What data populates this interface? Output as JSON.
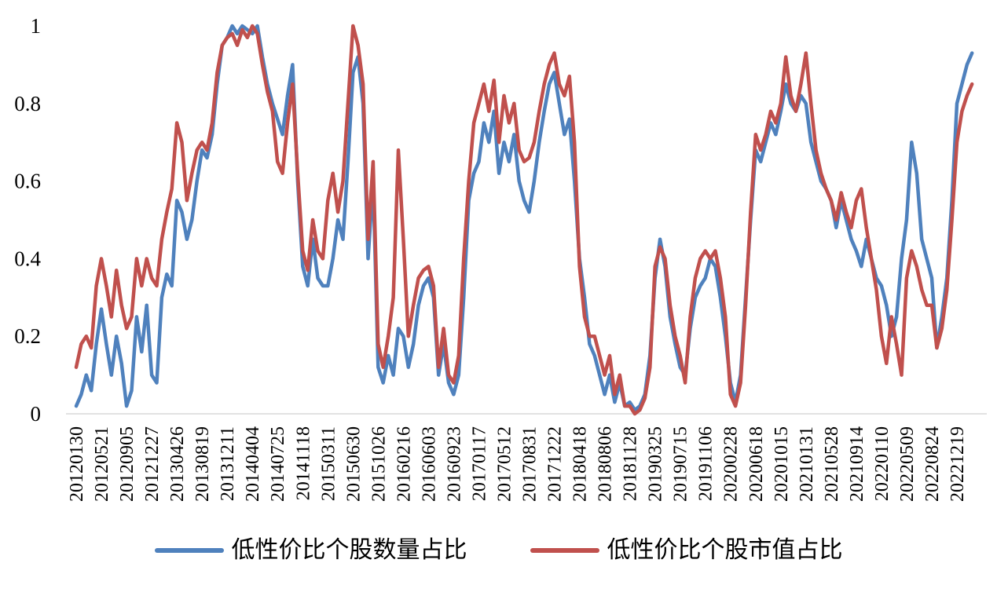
{
  "chart_data": {
    "type": "line",
    "title": "",
    "xlabel": "",
    "ylabel": "",
    "ylim": [
      0,
      1
    ],
    "yticks": [
      "0",
      "0.2",
      "0.4",
      "0.6",
      "0.8",
      "1"
    ],
    "grid": false,
    "legend_position": "bottom",
    "background_color": "#ffffff",
    "axis_line_color": "#d9d9d9",
    "text_color": "#000000",
    "points_per_tick": 5,
    "categories": [
      "20120130",
      "20120521",
      "20120905",
      "20121227",
      "20130426",
      "20130819",
      "20131211",
      "20140404",
      "20140725",
      "20141118",
      "20150311",
      "20150630",
      "20151026",
      "20160216",
      "20160603",
      "20160923",
      "20170117",
      "20170512",
      "20170831",
      "20171222",
      "20180418",
      "20180806",
      "20181128",
      "20190325",
      "20190715",
      "20191106",
      "20200228",
      "20200618",
      "20201015",
      "20210131",
      "20210528",
      "20210914",
      "20220110",
      "20220509",
      "20220824",
      "20221219"
    ],
    "series": [
      {
        "name": "低性价比个股数量占比",
        "color": "#4F81BD",
        "values": [
          0.02,
          0.05,
          0.1,
          0.06,
          0.18,
          0.27,
          0.18,
          0.1,
          0.2,
          0.13,
          0.02,
          0.06,
          0.25,
          0.16,
          0.28,
          0.1,
          0.08,
          0.3,
          0.36,
          0.33,
          0.55,
          0.52,
          0.45,
          0.5,
          0.6,
          0.68,
          0.66,
          0.72,
          0.85,
          0.95,
          0.97,
          1.0,
          0.98,
          1.0,
          0.99,
          0.98,
          1.0,
          0.92,
          0.85,
          0.8,
          0.76,
          0.72,
          0.82,
          0.9,
          0.6,
          0.38,
          0.33,
          0.45,
          0.35,
          0.33,
          0.33,
          0.4,
          0.5,
          0.45,
          0.65,
          0.88,
          0.92,
          0.8,
          0.4,
          0.6,
          0.12,
          0.08,
          0.15,
          0.1,
          0.22,
          0.2,
          0.12,
          0.18,
          0.28,
          0.33,
          0.35,
          0.3,
          0.1,
          0.18,
          0.08,
          0.05,
          0.1,
          0.3,
          0.55,
          0.62,
          0.65,
          0.75,
          0.7,
          0.78,
          0.62,
          0.7,
          0.65,
          0.72,
          0.6,
          0.55,
          0.52,
          0.6,
          0.7,
          0.78,
          0.85,
          0.88,
          0.8,
          0.72,
          0.76,
          0.6,
          0.4,
          0.3,
          0.18,
          0.15,
          0.1,
          0.05,
          0.1,
          0.03,
          0.08,
          0.02,
          0.03,
          0.01,
          0.02,
          0.05,
          0.15,
          0.35,
          0.45,
          0.38,
          0.25,
          0.18,
          0.12,
          0.1,
          0.22,
          0.3,
          0.33,
          0.35,
          0.4,
          0.38,
          0.3,
          0.2,
          0.08,
          0.03,
          0.1,
          0.3,
          0.5,
          0.68,
          0.65,
          0.7,
          0.75,
          0.72,
          0.78,
          0.85,
          0.8,
          0.78,
          0.82,
          0.8,
          0.7,
          0.65,
          0.6,
          0.58,
          0.55,
          0.48,
          0.55,
          0.5,
          0.45,
          0.42,
          0.38,
          0.45,
          0.4,
          0.35,
          0.33,
          0.28,
          0.2,
          0.25,
          0.4,
          0.5,
          0.7,
          0.62,
          0.45,
          0.4,
          0.35,
          0.17,
          0.25,
          0.35,
          0.55,
          0.8,
          0.85,
          0.9,
          0.93
        ]
      },
      {
        "name": "低性价比个股市值占比",
        "color": "#C0504D",
        "values": [
          0.12,
          0.18,
          0.2,
          0.17,
          0.33,
          0.4,
          0.33,
          0.25,
          0.37,
          0.28,
          0.22,
          0.25,
          0.4,
          0.33,
          0.4,
          0.35,
          0.33,
          0.45,
          0.52,
          0.58,
          0.75,
          0.7,
          0.55,
          0.62,
          0.68,
          0.7,
          0.68,
          0.75,
          0.88,
          0.95,
          0.97,
          0.98,
          0.95,
          0.99,
          0.97,
          1.0,
          0.98,
          0.9,
          0.83,
          0.78,
          0.65,
          0.62,
          0.75,
          0.85,
          0.62,
          0.42,
          0.37,
          0.5,
          0.42,
          0.4,
          0.55,
          0.62,
          0.52,
          0.6,
          0.8,
          1.0,
          0.95,
          0.85,
          0.45,
          0.65,
          0.18,
          0.12,
          0.2,
          0.3,
          0.68,
          0.45,
          0.2,
          0.28,
          0.35,
          0.37,
          0.38,
          0.33,
          0.12,
          0.22,
          0.1,
          0.08,
          0.15,
          0.4,
          0.6,
          0.75,
          0.8,
          0.85,
          0.78,
          0.86,
          0.7,
          0.82,
          0.75,
          0.8,
          0.68,
          0.65,
          0.66,
          0.7,
          0.78,
          0.85,
          0.9,
          0.93,
          0.85,
          0.82,
          0.87,
          0.7,
          0.38,
          0.25,
          0.2,
          0.2,
          0.15,
          0.1,
          0.15,
          0.05,
          0.1,
          0.02,
          0.02,
          0.0,
          0.01,
          0.04,
          0.12,
          0.38,
          0.43,
          0.4,
          0.28,
          0.2,
          0.15,
          0.08,
          0.25,
          0.35,
          0.4,
          0.42,
          0.4,
          0.42,
          0.35,
          0.25,
          0.05,
          0.02,
          0.08,
          0.28,
          0.52,
          0.72,
          0.68,
          0.72,
          0.78,
          0.75,
          0.8,
          0.92,
          0.82,
          0.78,
          0.85,
          0.93,
          0.8,
          0.68,
          0.62,
          0.58,
          0.55,
          0.5,
          0.57,
          0.52,
          0.48,
          0.55,
          0.58,
          0.48,
          0.4,
          0.32,
          0.2,
          0.13,
          0.25,
          0.18,
          0.1,
          0.35,
          0.42,
          0.38,
          0.32,
          0.28,
          0.28,
          0.17,
          0.22,
          0.32,
          0.5,
          0.7,
          0.78,
          0.82,
          0.85
        ]
      }
    ]
  }
}
